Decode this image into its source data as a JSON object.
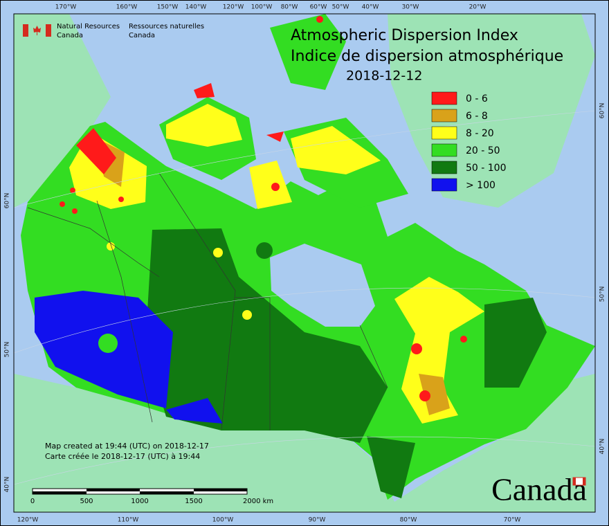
{
  "header": {
    "agency_en": [
      "Natural Resources",
      "Canada"
    ],
    "agency_fr": [
      "Ressources naturelles",
      "Canada"
    ]
  },
  "title": [
    "Atmospheric Dispersion Index",
    "Indice de dispersion atmosphérique",
    "2018-12-12"
  ],
  "legend": [
    {
      "label": "0 - 6",
      "color": "#ff1a1a"
    },
    {
      "label": "6 - 8",
      "color": "#d9a21a"
    },
    {
      "label": "8 - 20",
      "color": "#ffff1a"
    },
    {
      "label": "20 - 50",
      "color": "#33dd22"
    },
    {
      "label": "50 - 100",
      "color": "#117a11"
    },
    {
      "label": "> 100",
      "color": "#1111ee"
    }
  ],
  "graticule": {
    "top": [
      "170°W",
      "160°W",
      "150°W",
      "140°W",
      "120°W",
      "100°W",
      "80°W",
      "60°W",
      "50°W",
      "40°W",
      "30°W",
      "20°W"
    ],
    "bottom": [
      "120°W",
      "110°W",
      "100°W",
      "90°W",
      "80°W",
      "70°W"
    ],
    "left": [
      "60°N",
      "50°N",
      "40°N"
    ],
    "right": [
      "60°N",
      "50°N",
      "40°N"
    ]
  },
  "footer": [
    "Map created at 19:44 (UTC) on 2018-12-17",
    "Carte créée le 2018-12-17 (UTC) à 19:44"
  ],
  "scale": [
    "0",
    "500",
    "1000",
    "1500",
    "2000 km"
  ],
  "wordmark": "Canada"
}
